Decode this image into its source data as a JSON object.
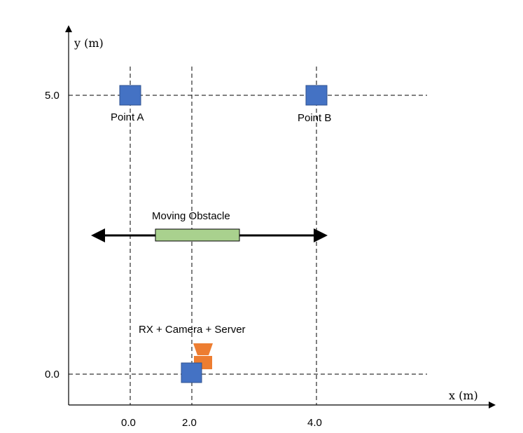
{
  "axes": {
    "x_label": "x (m)",
    "y_label": "y (m)",
    "x_ticks": [
      "0.0",
      "2.0",
      "4.0"
    ],
    "y_ticks": [
      "0.0",
      "5.0"
    ]
  },
  "points": {
    "a": {
      "label": "Point A",
      "x": 0.0,
      "y": 5.0
    },
    "b": {
      "label": "Point B",
      "x": 4.0,
      "y": 5.0
    }
  },
  "obstacle": {
    "label": "Moving Obstacle"
  },
  "receiver": {
    "label": "RX + Camera + Server",
    "x": 2.0,
    "y": 0.0
  },
  "colors": {
    "point": "#4472C4",
    "point_stroke": "#2F528F",
    "obstacle": "#A9D18E",
    "camera": "#ED7D31"
  }
}
